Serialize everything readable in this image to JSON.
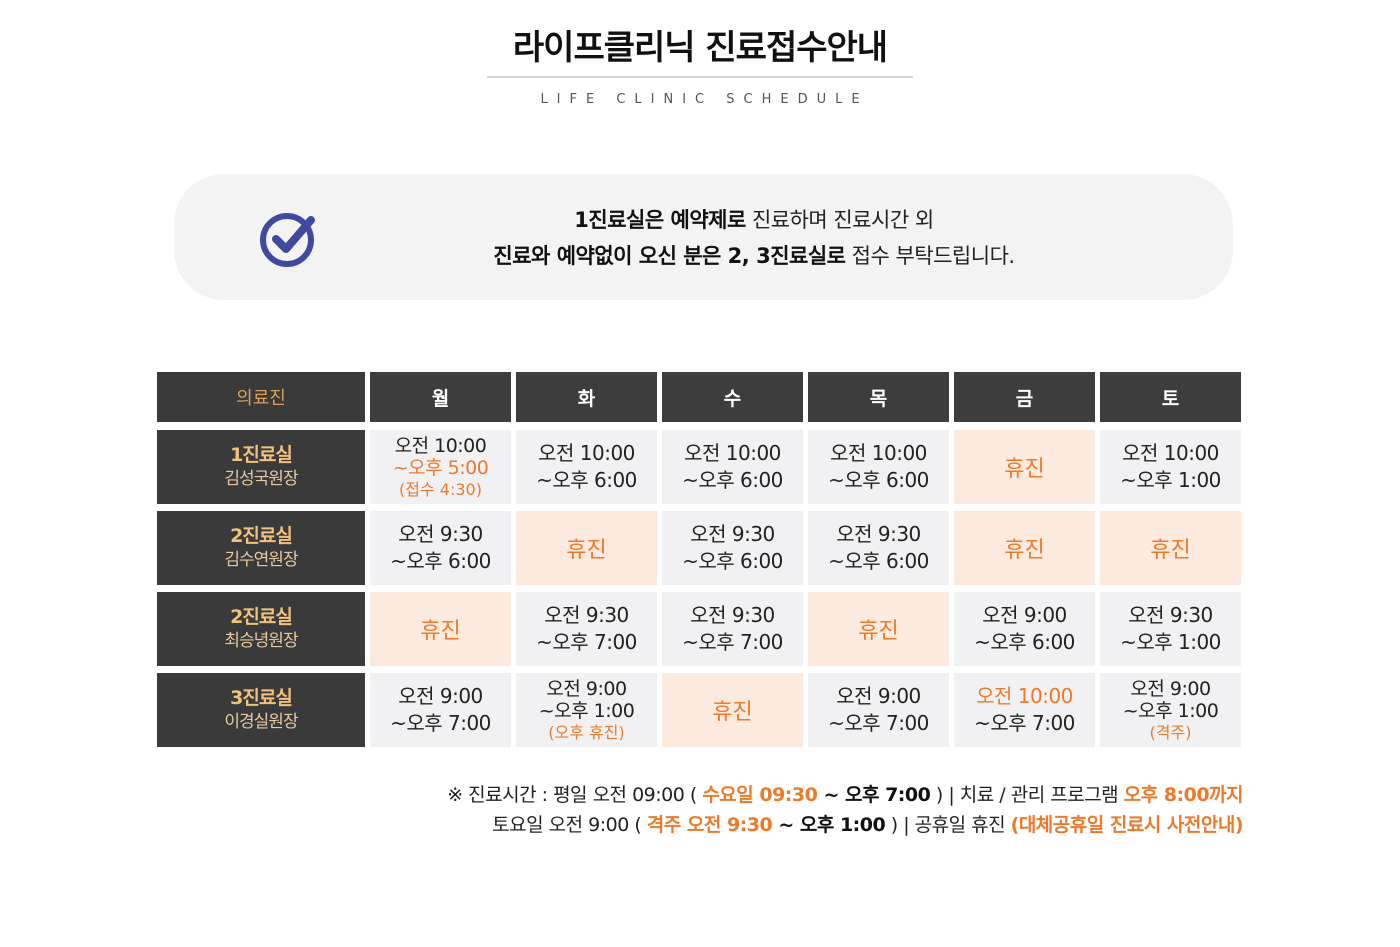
{
  "header": {
    "title": "라이프클리닉 진료접수안내",
    "subtitle": "LIFE CLINIC SCHEDULE"
  },
  "notice": {
    "icon": "check-circle-icon",
    "line1_bold": "1진료실은 예약제로",
    "line1_rest": " 진료하며 진료시간 외",
    "line2_bold": "진료와 예약없이 오신 분은 2, 3진료실로",
    "line2_rest": " 접수 부탁드립니다."
  },
  "schedule": {
    "staff_header": "의료진",
    "days": [
      "월",
      "화",
      "수",
      "목",
      "금",
      "토"
    ],
    "closed_label": "휴진",
    "rows": [
      {
        "room": "1진료실",
        "doctor": "김성국원장",
        "cells": [
          {
            "l1": "오전 10:00",
            "l2": "~오후 5:00",
            "note": "(접수 4:30)"
          },
          {
            "l1": "오전 10:00",
            "l2": "~오후 6:00"
          },
          {
            "l1": "오전 10:00",
            "l2": "~오후 6:00"
          },
          {
            "l1": "오전 10:00",
            "l2": "~오후 6:00"
          },
          {
            "closed": "휴진"
          },
          {
            "l1": "오전 10:00",
            "l2": "~오후 1:00"
          }
        ]
      },
      {
        "room": "2진료실",
        "doctor": "김수연원장",
        "cells": [
          {
            "l1": "오전 9:30",
            "l2": "~오후 6:00"
          },
          {
            "closed": "휴진"
          },
          {
            "l1": "오전 9:30",
            "l2": "~오후 6:00"
          },
          {
            "l1": "오전 9:30",
            "l2": "~오후 6:00"
          },
          {
            "closed": "휴진"
          },
          {
            "closed": "휴진"
          }
        ]
      },
      {
        "room": "2진료실",
        "doctor": "최승녕원장",
        "cells": [
          {
            "closed": "휴진"
          },
          {
            "l1": "오전 9:30",
            "l2": "~오후 7:00"
          },
          {
            "l1": "오전 9:30",
            "l2": "~오후 7:00"
          },
          {
            "closed": "휴진"
          },
          {
            "l1": "오전 9:00",
            "l2": "~오후 6:00"
          },
          {
            "l1": "오전 9:30",
            "l2": "~오후 1:00"
          }
        ]
      },
      {
        "room": "3진료실",
        "doctor": "이경실원장",
        "cells": [
          {
            "l1": "오전 9:00",
            "l2": "~오후 7:00"
          },
          {
            "l1": "오전 9:00",
            "l2": "~오후 1:00",
            "note": "(오후 휴진)"
          },
          {
            "closed": "휴진"
          },
          {
            "l1": "오전 9:00",
            "l2": "~오후 7:00"
          },
          {
            "l1": "오전 10:00",
            "l2": "~오후 7:00",
            "l1_highlight": true
          },
          {
            "l1": "오전 9:00",
            "l2": "~오후 1:00",
            "note": "(격주)"
          }
        ]
      }
    ]
  },
  "footer": {
    "line1": {
      "a": "※ 진료시간 : 평일 오전 09:00 ( ",
      "b": "수요일 09:30",
      "c": " ~ ",
      "d": "오후 7:00",
      "e": " )  |   치료 / 관리 프로그램 ",
      "f": "오후 8:00까지"
    },
    "line2": {
      "a": "토요일 오전 9:00 ( ",
      "b": "격주 오전 9:30",
      "c": " ~ ",
      "d": "오후 1:00",
      "e": " )  |   공휴일 휴진 ",
      "f": "(대체공휴일 진료시 사전안내)"
    }
  }
}
